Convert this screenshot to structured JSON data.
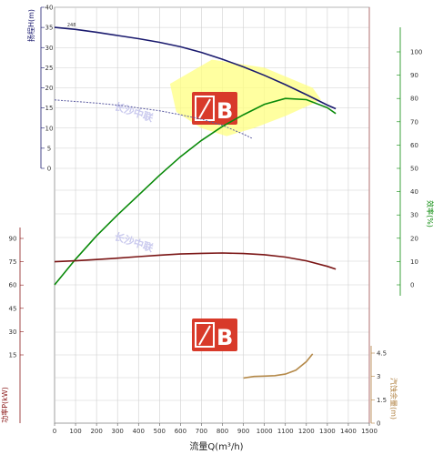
{
  "chart_data": {
    "type": "line",
    "x_axis": {
      "label": "流量Q(m³/h)",
      "ticks": [
        0,
        100,
        200,
        300,
        400,
        500,
        600,
        700,
        800,
        900,
        1000,
        1100,
        1200,
        1300,
        1400,
        1500
      ],
      "range": [
        0,
        1500
      ]
    },
    "y_axes": {
      "head": {
        "label": "扬程H(m)",
        "ticks": [
          0,
          5,
          10,
          15,
          20,
          25,
          30,
          35,
          40
        ],
        "range": [
          0,
          40
        ],
        "color": "#1a1a6e"
      },
      "efficiency": {
        "label": "效率(%)",
        "ticks": [
          0,
          10,
          20,
          30,
          40,
          50,
          60,
          70,
          80,
          90,
          100
        ],
        "range": [
          0,
          110
        ],
        "color": "#0a8a0a"
      },
      "power": {
        "label": "功率P(kW)",
        "ticks": [
          15,
          30,
          45,
          60,
          75,
          90
        ],
        "color": "#8b1a1a"
      },
      "npsh": {
        "label": "汽蚀余量(m)",
        "ticks": [
          0,
          1.5,
          3,
          4.5
        ],
        "range": [
          0,
          6
        ],
        "color": "#b08040"
      }
    },
    "annotations": {
      "diameter_label": "248"
    },
    "series": [
      {
        "key": "head",
        "color": "#1a1a6e",
        "axis": "head",
        "x": [
          0,
          100,
          200,
          300,
          400,
          500,
          600,
          700,
          800,
          900,
          1000,
          1100,
          1200,
          1300,
          1340
        ],
        "y": [
          35,
          34.5,
          33.8,
          33,
          32.2,
          31.3,
          30.2,
          28.8,
          27.1,
          25.2,
          23.1,
          20.8,
          18.3,
          15.7,
          14.8
        ]
      },
      {
        "key": "head_min",
        "color": "#5a5aa0",
        "axis": "head",
        "dashed": true,
        "x": [
          0,
          100,
          200,
          300,
          400,
          500,
          600,
          700,
          800,
          900,
          940
        ],
        "y": [
          17,
          16.6,
          16.2,
          15.7,
          15,
          14.3,
          13.3,
          12.2,
          10.7,
          8.5,
          7.5
        ]
      },
      {
        "key": "efficiency",
        "color": "#0a8a0a",
        "axis": "efficiency",
        "x": [
          0,
          100,
          200,
          300,
          400,
          500,
          600,
          700,
          800,
          900,
          1000,
          1100,
          1200,
          1300,
          1340
        ],
        "y": [
          0,
          11,
          21,
          30,
          38.5,
          47,
          55,
          62,
          68,
          73,
          77.5,
          80,
          79.5,
          76,
          73.5
        ]
      },
      {
        "key": "power",
        "color": "#7a1414",
        "axis": "power",
        "x": [
          0,
          100,
          200,
          300,
          400,
          500,
          600,
          700,
          800,
          900,
          1000,
          1100,
          1200,
          1300,
          1340
        ],
        "y": [
          75,
          75.6,
          76.4,
          77.3,
          78.3,
          79.2,
          80,
          80.4,
          80.6,
          80.3,
          79.5,
          78,
          75.6,
          72,
          70.2
        ]
      },
      {
        "key": "npsh",
        "color": "#b58a4a",
        "axis": "npsh",
        "x": [
          900,
          950,
          1000,
          1050,
          1100,
          1150,
          1200,
          1230
        ],
        "y": [
          2.9,
          3,
          3.02,
          3.05,
          3.15,
          3.4,
          3.95,
          4.45
        ]
      }
    ],
    "operating_region": {
      "color": "#ffff80",
      "x": [
        550,
        750,
        1000,
        1230,
        1270,
        1100,
        950,
        820,
        700,
        580
      ],
      "y": [
        21,
        27,
        25,
        20,
        17,
        13,
        10,
        8,
        10,
        14
      ]
    },
    "watermarks": [
      "长沙中联",
      "长沙中联"
    ],
    "logo_text": "B"
  }
}
